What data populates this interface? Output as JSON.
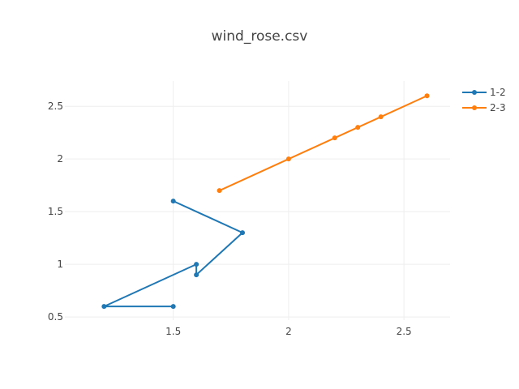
{
  "chart_data": {
    "type": "line",
    "title": "wind_rose.csv",
    "xlabel": "",
    "ylabel": "",
    "xlim": [
      1.03,
      2.7
    ],
    "ylim": [
      0.47,
      2.74
    ],
    "x_ticks": [
      1.5,
      2,
      2.5
    ],
    "x_tick_labels": [
      "1.5",
      "2",
      "2.5"
    ],
    "y_ticks": [
      0.5,
      1,
      1.5,
      2,
      2.5
    ],
    "y_tick_labels": [
      "0.5",
      "1",
      "1.5",
      "2",
      "2.5"
    ],
    "grid": true,
    "legend_position": "top-right",
    "series": [
      {
        "name": "1-2",
        "color": "#1f77b4",
        "x": [
          1.5,
          1.2,
          1.6,
          1.6,
          1.8,
          1.5
        ],
        "y": [
          0.6,
          0.6,
          1.0,
          0.9,
          1.3,
          1.6
        ]
      },
      {
        "name": "2-3",
        "color": "#ff7f0e",
        "x": [
          1.7,
          2.0,
          2.2,
          2.3,
          2.4,
          2.6
        ],
        "y": [
          1.7,
          2.0,
          2.2,
          2.3,
          2.4,
          2.6
        ]
      }
    ]
  }
}
